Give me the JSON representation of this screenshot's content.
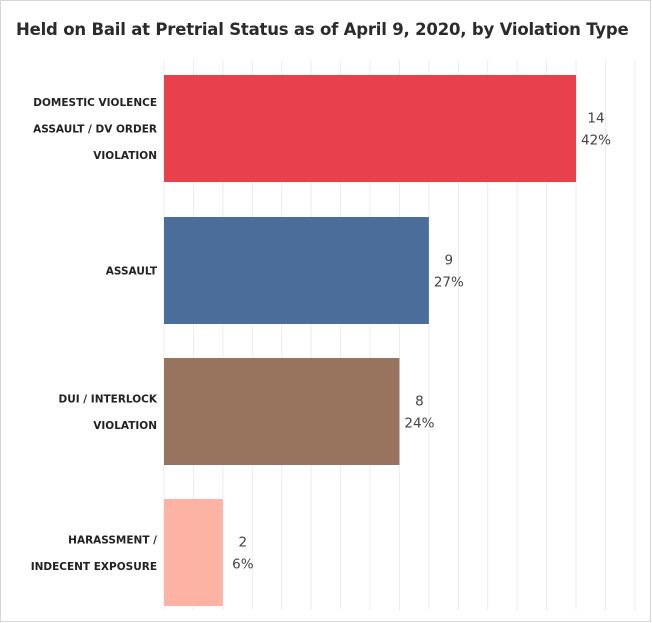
{
  "title": "Held on Bail at Pretrial Status as of April 9, 2020, by Violation Type",
  "chart_data": {
    "type": "bar",
    "orientation": "horizontal",
    "title": "Held on Bail at Pretrial Status as of April 9, 2020, by Violation Type",
    "xlabel": "",
    "ylabel": "",
    "xlim": [
      0,
      16
    ],
    "grid": true,
    "legend": "none",
    "categories": [
      [
        "DOMESTIC VIOLENCE",
        "ASSAULT / DV ORDER",
        "VIOLATION"
      ],
      [
        "ASSAULT"
      ],
      [
        "DUI / INTERLOCK",
        "VIOLATION"
      ],
      [
        "HARASSMENT /",
        "INDECENT EXPOSURE"
      ]
    ],
    "values": [
      14,
      9,
      8,
      2
    ],
    "percents": [
      "42%",
      "27%",
      "24%",
      "6%"
    ],
    "colors": [
      "#e8414b",
      "#4a6d9a",
      "#98735d",
      "#fdb3a4"
    ]
  }
}
